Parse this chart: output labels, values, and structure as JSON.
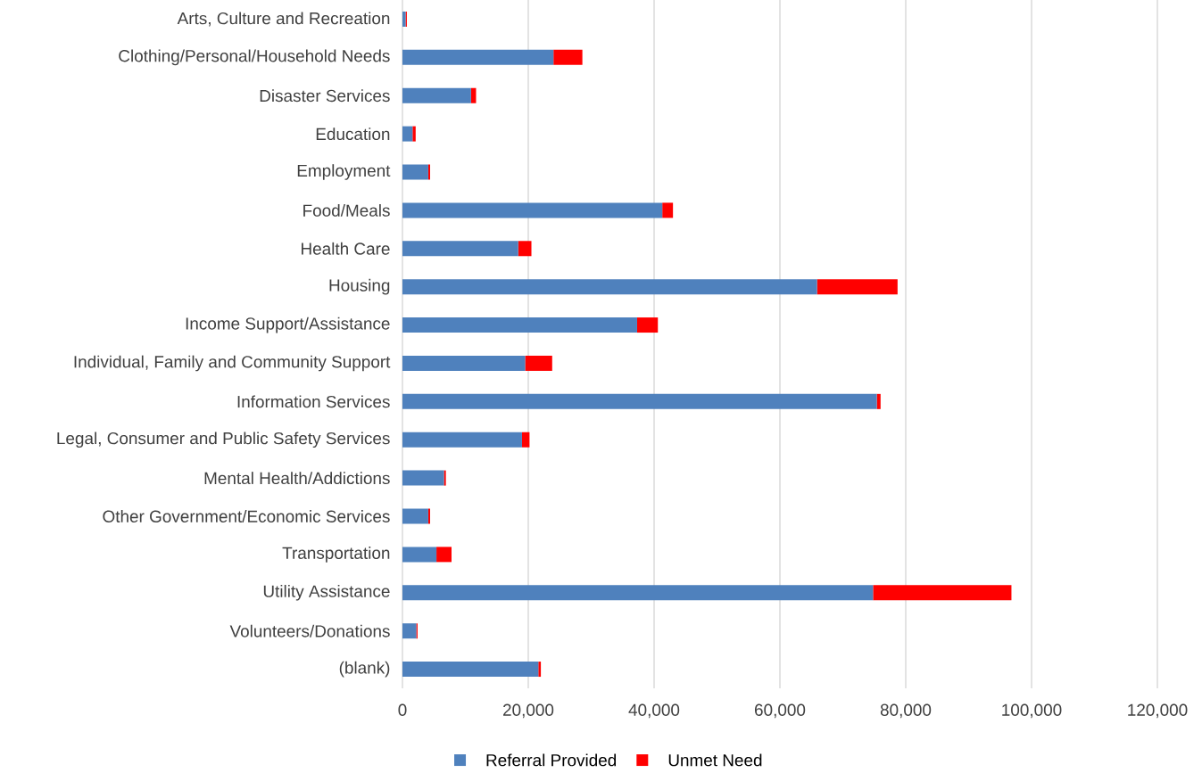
{
  "chart_data": {
    "type": "bar",
    "orientation": "horizontal",
    "stacked": true,
    "categories": [
      "Arts, Culture and Recreation",
      "Clothing/Personal/Household Needs",
      "Disaster Services",
      "Education",
      "Employment",
      "Food/Meals",
      "Health Care",
      "Housing",
      "Income Support/Assistance",
      "Individual, Family and Community Support",
      "Information Services",
      "Legal, Consumer and Public Safety Services",
      "Mental Health/Addictions",
      "Other Government/Economic Services",
      "Transportation",
      "Utility Assistance",
      "Volunteers/Donations",
      "(blank)"
    ],
    "series": [
      {
        "name": "Referral Provided",
        "color": "#4f81bd",
        "values": [
          500,
          24000,
          10900,
          1600,
          4100,
          41300,
          18400,
          65900,
          37300,
          19500,
          75400,
          19000,
          6600,
          4100,
          5400,
          74800,
          2200,
          21600
        ]
      },
      {
        "name": "Unmet Need",
        "color": "#ff0000",
        "values": [
          200,
          4600,
          800,
          500,
          300,
          1700,
          2100,
          12800,
          3300,
          4300,
          600,
          1200,
          300,
          300,
          2400,
          22000,
          200,
          400
        ]
      }
    ],
    "xlim": [
      0,
      120000
    ],
    "xticks": [
      0,
      {
        "value": 20000,
        "label": "20,000"
      },
      {
        "value": 40000,
        "label": "40,000"
      },
      {
        "value": 60000,
        "label": "60,000"
      },
      {
        "value": 80000,
        "label": "80,000"
      },
      {
        "value": 100000,
        "label": "100,000"
      },
      {
        "value": 120000,
        "label": "120,000"
      }
    ],
    "grid": "x",
    "legend": "bottom"
  }
}
